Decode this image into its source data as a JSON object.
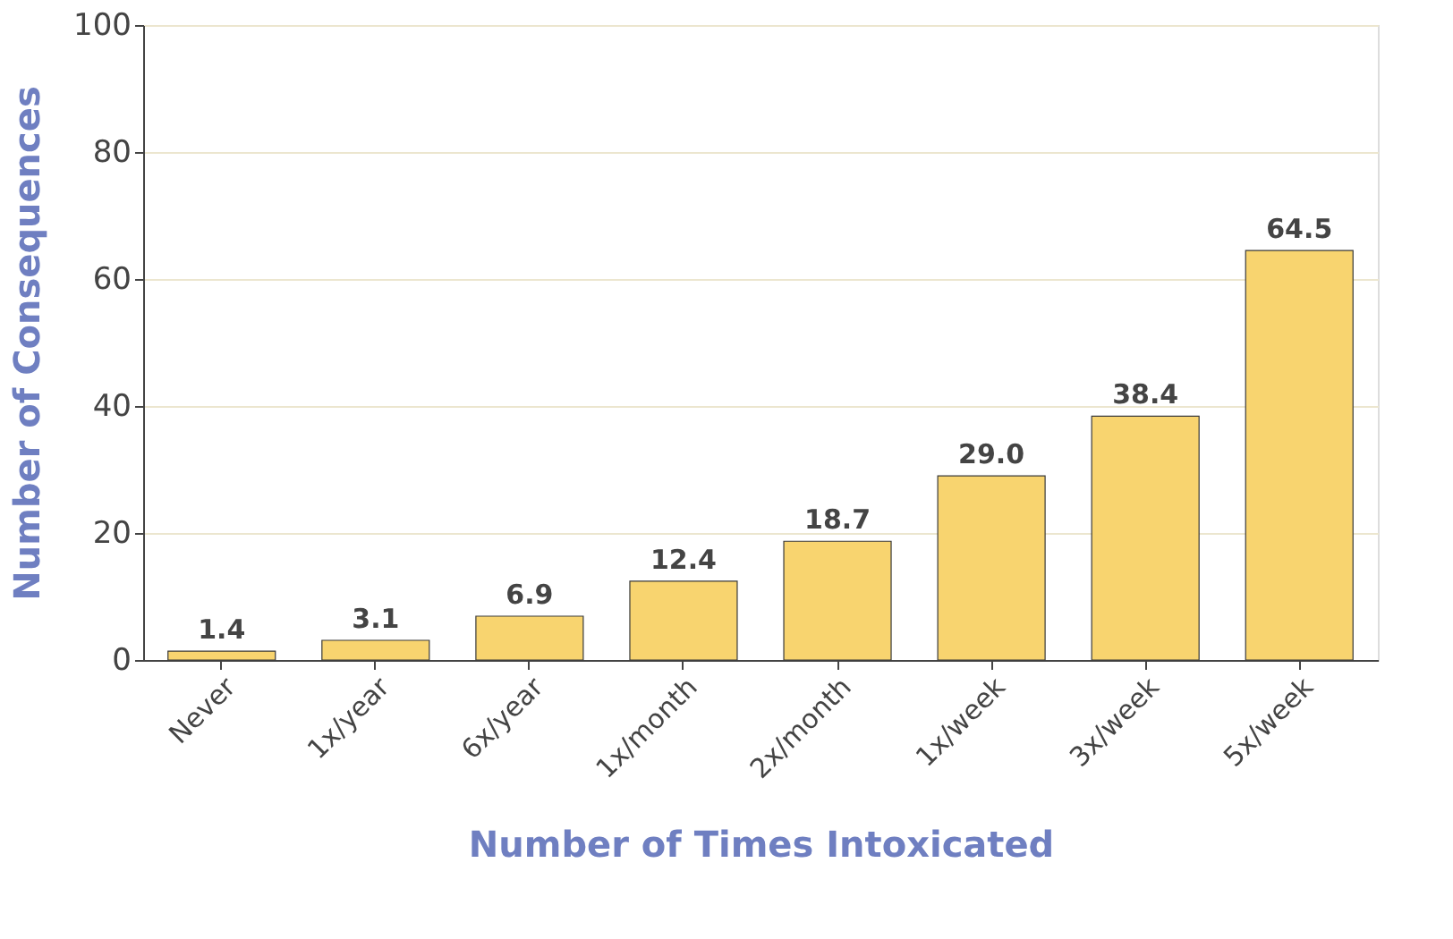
{
  "chart_data": {
    "type": "bar",
    "xlabel": "Number of Times Intoxicated",
    "ylabel": "Number of Consequences",
    "categories": [
      "Never",
      "1x/year",
      "6x/year",
      "1x/month",
      "2x/month",
      "1x/week",
      "3x/week",
      "5x/week"
    ],
    "values": [
      1.4,
      3.1,
      6.9,
      12.4,
      18.7,
      29.0,
      38.4,
      64.5
    ],
    "value_labels": [
      "1.4",
      "3.1",
      "6.9",
      "12.4",
      "18.7",
      "29.0",
      "38.4",
      "64.5"
    ],
    "color": "#f8d46f",
    "ylim": [
      0,
      100
    ],
    "yticks": [
      0,
      20,
      40,
      60,
      80,
      100
    ],
    "grid": "y"
  }
}
